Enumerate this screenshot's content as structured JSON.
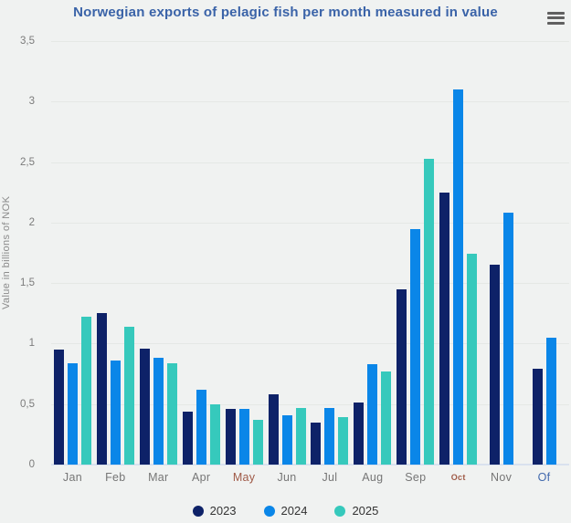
{
  "header": {
    "menu_icon": "hamburger"
  },
  "chart_data": {
    "type": "bar",
    "title": "Norwegian exports of pelagic fish per month measured in value",
    "xlabel": "",
    "ylabel": "Value in billions of NOK",
    "ylim": [
      0,
      3.5
    ],
    "grid": true,
    "legend_position": "bottom",
    "yticks": [
      {
        "value": 0,
        "label": "0"
      },
      {
        "value": 0.5,
        "label": "0,5"
      },
      {
        "value": 1,
        "label": "1"
      },
      {
        "value": 1.5,
        "label": "1,5"
      },
      {
        "value": 2,
        "label": "2"
      },
      {
        "value": 2.5,
        "label": "2,5"
      },
      {
        "value": 3,
        "label": "3"
      },
      {
        "value": 3.5,
        "label": "3,5"
      }
    ],
    "categories": [
      "Jan",
      "Feb",
      "Mar",
      "Apr",
      "May",
      "Jun",
      "Jul",
      "Aug",
      "Sep",
      "Oct",
      "Nov",
      "Of"
    ],
    "category_styles": {
      "May": "visited",
      "Oct": "visited-small",
      "Of": "link"
    },
    "series": [
      {
        "name": "2023",
        "color": "#0e2268",
        "values": [
          0.95,
          1.25,
          0.96,
          0.44,
          0.46,
          0.58,
          0.35,
          0.51,
          1.45,
          2.25,
          1.65,
          0.79
        ]
      },
      {
        "name": "2024",
        "color": "#0a86e8",
        "values": [
          0.84,
          0.86,
          0.88,
          0.62,
          0.46,
          0.41,
          0.47,
          0.83,
          1.95,
          3.1,
          2.08,
          1.05
        ]
      },
      {
        "name": "2025",
        "color": "#36c9bc",
        "values": [
          1.22,
          1.14,
          0.84,
          0.5,
          0.37,
          0.47,
          0.39,
          0.77,
          2.53,
          1.74,
          null,
          null
        ]
      }
    ]
  }
}
